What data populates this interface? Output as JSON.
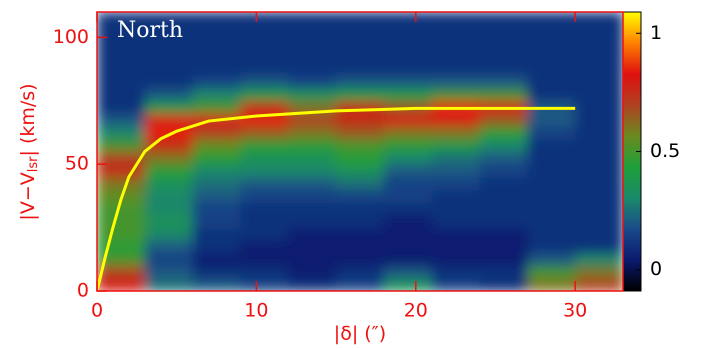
{
  "chart_data": {
    "type": "heatmap",
    "title": "North",
    "x_label": "|δ| (″)",
    "y_label": {
      "main": "|V−V",
      "sub": "lsr",
      "rest": "| (km/s)"
    },
    "xlim": [
      0,
      33
    ],
    "xticks": [
      0,
      10,
      20,
      30
    ],
    "ylim": [
      0,
      110
    ],
    "yticks": [
      0,
      50,
      100
    ],
    "clim": [
      -0.09,
      1.09
    ],
    "cticks": [
      0,
      0.5,
      1
    ],
    "colormap": [
      "#000000",
      "#0a1a6e",
      "#1a4a8a",
      "#1a8a6a",
      "#1ea03a",
      "#6a8a20",
      "#b04020",
      "#e01010",
      "#ff8000",
      "#ffff00"
    ],
    "axis_color": "#ee1111",
    "x_edges": [
      0,
      3,
      6,
      9,
      12,
      15,
      18,
      21,
      24,
      27,
      30,
      33
    ],
    "y_edges": [
      0,
      5,
      10,
      15,
      20,
      25,
      30,
      35,
      40,
      45,
      50,
      55,
      60,
      65,
      70,
      75,
      80,
      85,
      90,
      95,
      100,
      105,
      110
    ],
    "z": [
      [
        0.8,
        0.25,
        0.2,
        0.15,
        0.1,
        0.15,
        0.35,
        0.15,
        0.1,
        0.6,
        0.7
      ],
      [
        0.7,
        0.2,
        0.1,
        0.1,
        0.05,
        0.1,
        0.2,
        0.1,
        0.1,
        0.5,
        0.6
      ],
      [
        0.5,
        0.15,
        0.05,
        0.05,
        0.05,
        0.05,
        0.05,
        0.05,
        0.05,
        0.2,
        0.3
      ],
      [
        0.45,
        0.2,
        0.1,
        0.05,
        0.05,
        0.05,
        0.05,
        0.05,
        0.05,
        0.1,
        0.1
      ],
      [
        0.5,
        0.3,
        0.1,
        0.1,
        0.05,
        0.05,
        0.05,
        0.05,
        0.05,
        0.1,
        0.1
      ],
      [
        0.5,
        0.35,
        0.15,
        0.1,
        0.1,
        0.1,
        0.05,
        0.1,
        0.1,
        0.1,
        0.1
      ],
      [
        0.5,
        0.3,
        0.15,
        0.1,
        0.1,
        0.1,
        0.1,
        0.1,
        0.1,
        0.1,
        0.1
      ],
      [
        0.55,
        0.3,
        0.2,
        0.15,
        0.15,
        0.15,
        0.15,
        0.1,
        0.1,
        0.1,
        0.1
      ],
      [
        0.6,
        0.35,
        0.25,
        0.2,
        0.2,
        0.25,
        0.15,
        0.15,
        0.1,
        0.1,
        0.1
      ],
      [
        0.75,
        0.45,
        0.3,
        0.3,
        0.3,
        0.35,
        0.2,
        0.2,
        0.15,
        0.1,
        0.1
      ],
      [
        0.7,
        0.6,
        0.45,
        0.35,
        0.35,
        0.45,
        0.3,
        0.25,
        0.2,
        0.1,
        0.1
      ],
      [
        0.5,
        0.75,
        0.55,
        0.45,
        0.45,
        0.5,
        0.45,
        0.4,
        0.3,
        0.1,
        0.1
      ],
      [
        0.3,
        0.85,
        0.7,
        0.65,
        0.6,
        0.65,
        0.6,
        0.6,
        0.45,
        0.15,
        0.1
      ],
      [
        0.2,
        0.8,
        0.8,
        0.85,
        0.7,
        0.75,
        0.8,
        0.8,
        0.65,
        0.2,
        0.1
      ],
      [
        0.1,
        0.4,
        0.5,
        0.75,
        0.6,
        0.75,
        0.65,
        0.85,
        0.8,
        0.2,
        0.1
      ],
      [
        0.1,
        0.2,
        0.3,
        0.4,
        0.35,
        0.4,
        0.4,
        0.5,
        0.5,
        0.1,
        0.1
      ],
      [
        0.1,
        0.1,
        0.15,
        0.2,
        0.15,
        0.2,
        0.2,
        0.2,
        0.2,
        0.1,
        0.1
      ],
      [
        0.1,
        0.1,
        0.1,
        0.1,
        0.1,
        0.1,
        0.1,
        0.1,
        0.1,
        0.1,
        0.1
      ],
      [
        0.1,
        0.1,
        0.1,
        0.1,
        0.1,
        0.1,
        0.1,
        0.1,
        0.1,
        0.1,
        0.1
      ],
      [
        0.1,
        0.1,
        0.1,
        0.1,
        0.1,
        0.1,
        0.1,
        0.1,
        0.1,
        0.1,
        0.1
      ],
      [
        0.1,
        0.1,
        0.1,
        0.1,
        0.1,
        0.1,
        0.1,
        0.1,
        0.1,
        0.1,
        0.1
      ],
      [
        0.1,
        0.1,
        0.1,
        0.1,
        0.1,
        0.1,
        0.1,
        0.1,
        0.1,
        0.1,
        0.1
      ]
    ],
    "curve": {
      "color": "#ffff00",
      "x": [
        0,
        0.5,
        1,
        1.5,
        2,
        3,
        4,
        5,
        7,
        10,
        15,
        20,
        25,
        30
      ],
      "values": [
        0,
        13,
        25,
        36,
        45,
        55,
        60,
        63,
        67,
        69,
        71,
        72,
        72,
        72
      ]
    }
  }
}
